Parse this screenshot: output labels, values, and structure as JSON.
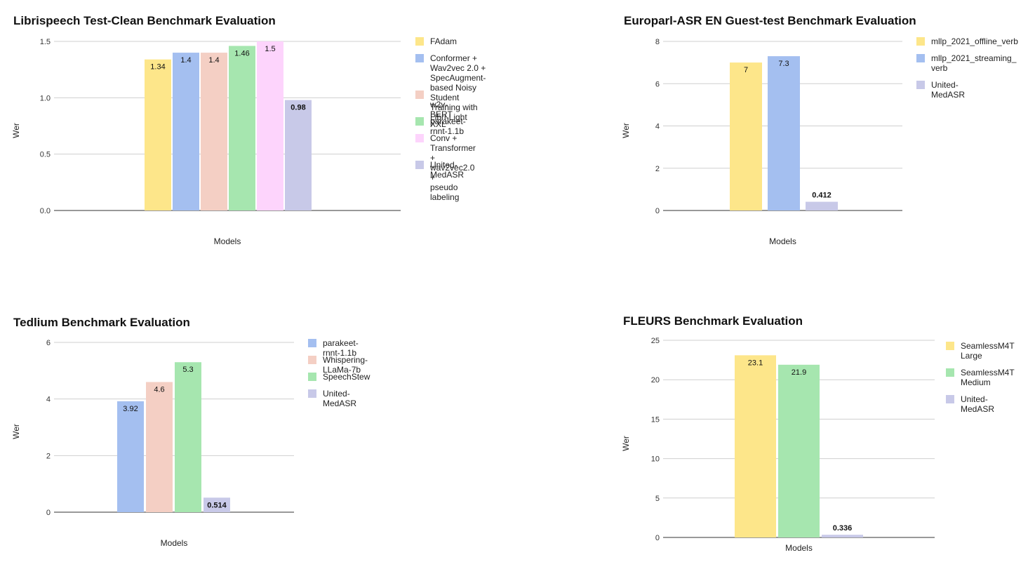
{
  "chart_data": [
    {
      "id": "librispeech",
      "type": "bar",
      "title": "Librispeech Test-Clean Benchmark Evaluation",
      "xlabel": "Models",
      "ylabel": "Wer",
      "ylim": [
        0,
        1.5
      ],
      "yticks": [
        "0.0",
        "0.5",
        "1.0",
        "1.5"
      ],
      "yticks_values": [
        0,
        0.5,
        1.0,
        1.5
      ],
      "categories": [
        "Models"
      ],
      "series": [
        {
          "name": "FAdam",
          "values": [
            1.34
          ],
          "label": "1.34",
          "color": "#fde68a",
          "bold": false
        },
        {
          "name": "Conformer + Wav2vec 2.0 + SpecAugment-based Noisy Student Training with Libri-Light",
          "values": [
            1.4
          ],
          "label": "1.4",
          "color": "#a4bff0",
          "bold": false
        },
        {
          "name": "w2v-BERT XXL",
          "values": [
            1.4
          ],
          "label": "1.4",
          "color": "#f4cfc4",
          "bold": false
        },
        {
          "name": "parakeet-rnnt-1.1b",
          "values": [
            1.46
          ],
          "label": "1.46",
          "color": "#a6e6af",
          "bold": false
        },
        {
          "name": "Conv + Transformer + wav2vec2.0 + pseudo labeling",
          "values": [
            1.5
          ],
          "label": "1.5",
          "color": "#fdd4fc",
          "bold": false
        },
        {
          "name": "United-MedASR",
          "values": [
            0.98
          ],
          "label": "0.98",
          "color": "#c8c9e8",
          "bold": true
        }
      ]
    },
    {
      "id": "europarl",
      "type": "bar",
      "title": "Europarl-ASR EN Guest-test Benchmark Evaluation",
      "xlabel": "Models",
      "ylabel": "Wer",
      "ylim": [
        0,
        8
      ],
      "yticks": [
        "0",
        "2",
        "4",
        "6",
        "8"
      ],
      "yticks_values": [
        0,
        2,
        4,
        6,
        8
      ],
      "categories": [
        "Models"
      ],
      "series": [
        {
          "name": "mllp_2021_offline_verb",
          "values": [
            7
          ],
          "label": "7",
          "color": "#fde68a",
          "bold": false
        },
        {
          "name": "mllp_2021_streaming_verb",
          "values": [
            7.3
          ],
          "label": "7.3",
          "color": "#a4bff0",
          "bold": false
        },
        {
          "name": "United-MedASR",
          "values": [
            0.412
          ],
          "label": "0.412",
          "color": "#c8c9e8",
          "bold": true
        }
      ]
    },
    {
      "id": "tedlium",
      "type": "bar",
      "title": "Tedlium Benchmark Evaluation",
      "xlabel": "Models",
      "ylabel": "Wer",
      "ylim": [
        0,
        6
      ],
      "yticks": [
        "0",
        "2",
        "4",
        "6"
      ],
      "yticks_values": [
        0,
        2,
        4,
        6
      ],
      "categories": [
        "Models"
      ],
      "series": [
        {
          "name": "parakeet-rnnt-1.1b",
          "values": [
            3.92
          ],
          "label": "3.92",
          "color": "#a4bff0",
          "bold": false
        },
        {
          "name": "Whispering-LLaMa-7b",
          "values": [
            4.6
          ],
          "label": "4.6",
          "color": "#f4cfc4",
          "bold": false
        },
        {
          "name": "SpeechStew",
          "values": [
            5.3
          ],
          "label": "5.3",
          "color": "#a6e6af",
          "bold": false
        },
        {
          "name": "United-MedASR",
          "values": [
            0.514
          ],
          "label": "0.514",
          "color": "#c8c9e8",
          "bold": true
        }
      ]
    },
    {
      "id": "fleurs",
      "type": "bar",
      "title": "FLEURS Benchmark Evaluation",
      "xlabel": "Models",
      "ylabel": "Wer",
      "ylim": [
        0,
        25
      ],
      "yticks": [
        "0",
        "5",
        "10",
        "15",
        "20",
        "25"
      ],
      "yticks_values": [
        0,
        5,
        10,
        15,
        20,
        25
      ],
      "categories": [
        "Models"
      ],
      "series": [
        {
          "name": "SeamlessM4T Large",
          "values": [
            23.1
          ],
          "label": "23.1",
          "color": "#fde68a",
          "bold": false
        },
        {
          "name": "SeamlessM4T Medium",
          "values": [
            21.9
          ],
          "label": "21.9",
          "color": "#a6e6af",
          "bold": false
        },
        {
          "name": "United-MedASR",
          "values": [
            0.336
          ],
          "label": "0.336",
          "color": "#c8c9e8",
          "bold": true
        }
      ]
    }
  ],
  "legends": {
    "librispeech": [
      "FAdam",
      "Conformer + Wav2vec 2.0 +\nSpecAugment-based Noisy Student\nTraining with Libri-Light",
      "\nw2v-BERT XXL",
      "parakeet-rnnt-1.1b",
      "Conv + Transformer + wav2vec2.0 +\npseudo labeling",
      "United-MedASR"
    ],
    "europarl": [
      "mllp_2021_offline_verb",
      "mllp_2021_streaming_\nverb",
      "United-MedASR"
    ],
    "tedlium": [
      "parakeet-rnnt-1.1b",
      "Whispering-LLaMa-7b",
      "SpeechStew",
      "United-MedASR"
    ],
    "fleurs": [
      "SeamlessM4T\nLarge",
      "SeamlessM4T\nMedium",
      "United-MedASR"
    ]
  }
}
